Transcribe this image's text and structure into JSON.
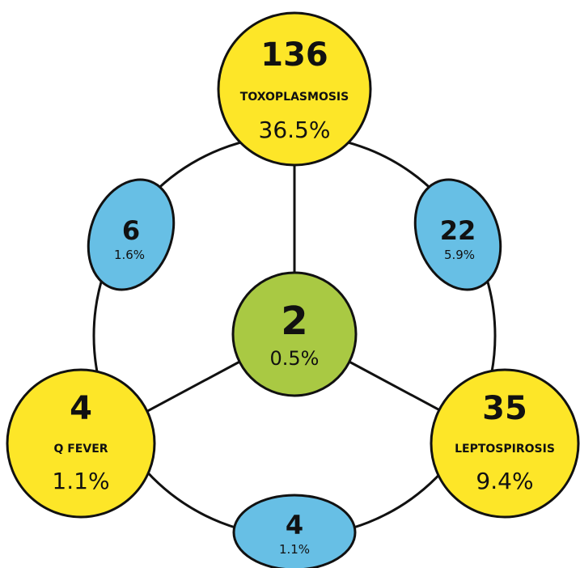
{
  "colors": {
    "single_disease_fill": "#fde628",
    "pair_overlap_fill": "#67bfe5",
    "triple_overlap_fill": "#a9c943",
    "outline": "#111111",
    "background": "#ffffff"
  },
  "diagram": {
    "toxoplasmosis": {
      "count": "136",
      "label": "TOXOPLASMOSIS",
      "percent": "36.5%"
    },
    "q_fever": {
      "count": "4",
      "label": "Q FEVER",
      "percent": "1.1%"
    },
    "leptospirosis": {
      "count": "35",
      "label": "LEPTOSPIROSIS",
      "percent": "9.4%"
    },
    "toxo_qfever": {
      "count": "6",
      "percent": "1.6%"
    },
    "toxo_lepto": {
      "count": "22",
      "percent": "5.9%"
    },
    "qfever_lepto": {
      "count": "4",
      "percent": "1.1%"
    },
    "all_three": {
      "count": "2",
      "percent": "0.5%"
    }
  }
}
